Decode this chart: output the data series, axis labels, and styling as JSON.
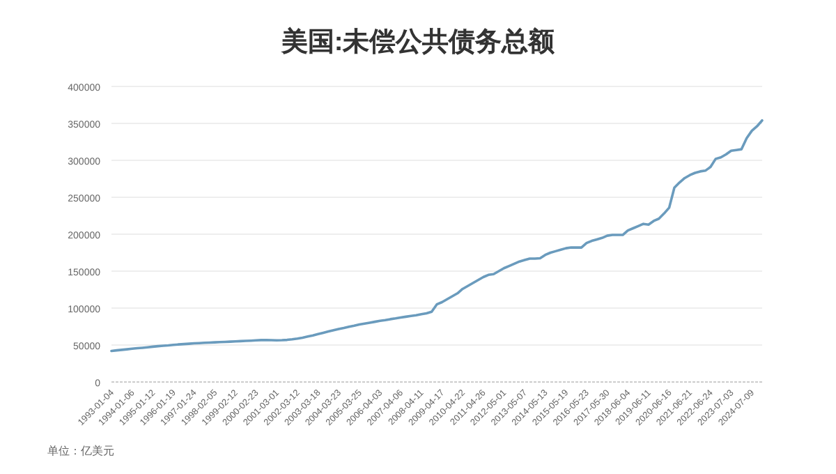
{
  "chart_data": {
    "type": "line",
    "title": "美国:未偿公共债务总额",
    "annotations": [
      "单位：亿美元"
    ],
    "categories": [
      "1993-01-04",
      null,
      null,
      null,
      "1994-01-06",
      null,
      null,
      null,
      "1995-01-12",
      null,
      null,
      null,
      "1996-01-19",
      null,
      null,
      null,
      "1997-01-24",
      null,
      null,
      null,
      "1998-02-05",
      null,
      null,
      null,
      "1999-02-12",
      null,
      null,
      null,
      "2000-02-23",
      null,
      null,
      null,
      "2001-03-01",
      null,
      null,
      null,
      "2002-03-12",
      null,
      null,
      null,
      "2003-03-18",
      null,
      null,
      null,
      "2004-03-23",
      null,
      null,
      null,
      "2005-03-25",
      null,
      null,
      null,
      "2006-04-03",
      null,
      null,
      null,
      "2007-04-06",
      null,
      null,
      null,
      "2008-04-11",
      null,
      null,
      null,
      "2009-04-17",
      null,
      null,
      null,
      "2010-04-22",
      null,
      null,
      null,
      "2011-04-26",
      null,
      null,
      null,
      "2012-05-01",
      null,
      null,
      null,
      "2013-05-07",
      null,
      null,
      null,
      "2014-05-13",
      null,
      null,
      null,
      "2015-05-19",
      null,
      null,
      null,
      "2016-05-23",
      null,
      null,
      null,
      "2017-05-30",
      null,
      null,
      null,
      "2018-06-04",
      null,
      null,
      null,
      "2019-06-11",
      null,
      null,
      null,
      "2020-06-16",
      null,
      null,
      null,
      "2021-06-21",
      null,
      null,
      null,
      "2022-06-24",
      null,
      null,
      null,
      "2023-07-03",
      null,
      null,
      null,
      "2024-07-09",
      null,
      null
    ],
    "series": [
      {
        "color": "#6a9bbd",
        "values": [
          42000,
          42800,
          43500,
          44200,
          45000,
          45700,
          46300,
          47000,
          47800,
          48500,
          49000,
          49500,
          50200,
          50800,
          51300,
          51800,
          52300,
          52600,
          53000,
          53300,
          53700,
          54000,
          54300,
          54600,
          55000,
          55300,
          55600,
          55900,
          56300,
          56700,
          56800,
          56600,
          56400,
          56600,
          57000,
          57800,
          58800,
          60000,
          61500,
          63000,
          64800,
          66500,
          68300,
          70000,
          71800,
          73200,
          74800,
          76200,
          77800,
          79000,
          80200,
          81500,
          82800,
          83800,
          85000,
          86000,
          87200,
          88300,
          89300,
          90400,
          91800,
          93000,
          95000,
          105000,
          108000,
          112000,
          116000,
          120000,
          126000,
          130000,
          134000,
          138000,
          142000,
          145000,
          146000,
          150000,
          154000,
          157000,
          160000,
          163000,
          165000,
          167000,
          167000,
          167500,
          172000,
          175000,
          177000,
          179000,
          181000,
          182000,
          182000,
          182000,
          188000,
          191000,
          193000,
          195000,
          198000,
          199000,
          199000,
          199000,
          205000,
          208000,
          211000,
          214000,
          213000,
          218000,
          221000,
          228000,
          236000,
          263000,
          270000,
          276000,
          280000,
          283000,
          285000,
          286000,
          291000,
          302000,
          304000,
          308000,
          313000,
          314000,
          315000,
          330000,
          340000,
          346000,
          354000
        ]
      }
    ],
    "ylim": [
      0,
      400000
    ],
    "yticks": [
      0,
      50000,
      100000,
      150000,
      200000,
      250000,
      300000,
      350000,
      400000
    ],
    "grid": "y",
    "line_style": "solid",
    "marker": "none"
  }
}
